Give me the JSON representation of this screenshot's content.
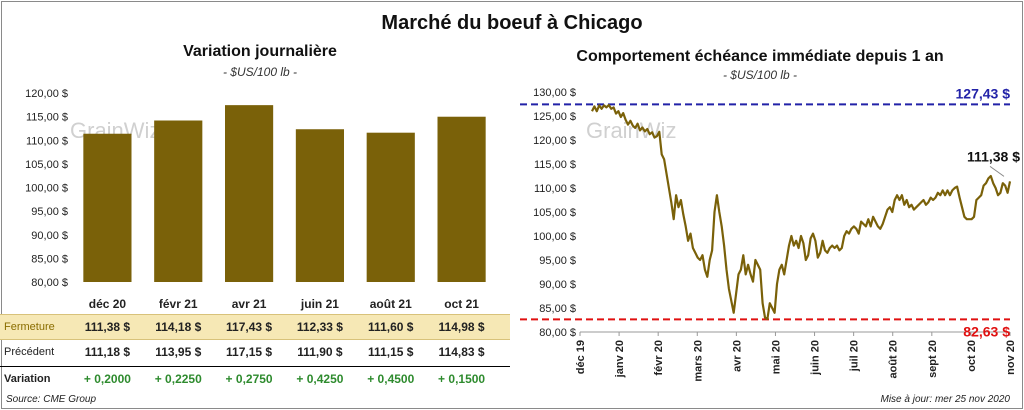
{
  "title": "Marché du boeuf à Chicago",
  "watermark": "GrainWiz",
  "footer": {
    "source": "Source: CME Group",
    "updated": "Mise à jour: mer 25 nov 2020"
  },
  "colors": {
    "bar": "#7a6109",
    "line": "#7a6109",
    "high": "#2222a8",
    "low": "#e01010",
    "fermeture_bg": "#f6e8b5",
    "positive": "#2e8b2e"
  },
  "chart_data": [
    {
      "type": "bar",
      "title": "Variation journalière",
      "subtitle": "- $US/100 lb -",
      "categories": [
        "déc 20",
        "févr 21",
        "avr 21",
        "juin 21",
        "août 21",
        "oct 21"
      ],
      "values": [
        111.38,
        114.18,
        117.43,
        112.33,
        111.6,
        114.98
      ],
      "ylim": [
        80,
        120
      ],
      "yticks": [
        "80,00 $",
        "85,00 $",
        "90,00 $",
        "95,00 $",
        "100,00 $",
        "105,00 $",
        "110,00 $",
        "115,00 $",
        "120,00 $"
      ],
      "table": {
        "rows": [
          {
            "label": "Fermeture",
            "values": [
              "111,38",
              "114,18",
              "117,43",
              "112,33",
              "111,60",
              "114,98"
            ]
          },
          {
            "label": "Précédent",
            "values": [
              "111,18",
              "113,95",
              "117,15",
              "111,90",
              "111,15",
              "114,83"
            ]
          },
          {
            "label": "Variation",
            "values": [
              "+ 0,2000",
              "+ 0,2250",
              "+ 0,2750",
              "+ 0,4250",
              "+ 0,4500",
              "+ 0,1500"
            ]
          }
        ],
        "currency": "$"
      }
    },
    {
      "type": "line",
      "title": "Comportement  échéance immédiate depuis 1 an",
      "subtitle": "- $US/100 lb -",
      "ylim": [
        80,
        130
      ],
      "yticks": [
        "80,00 $",
        "85,00 $",
        "90,00 $",
        "95,00 $",
        "100,00 $",
        "105,00 $",
        "110,00 $",
        "115,00 $",
        "120,00 $",
        "125,00 $",
        "130,00 $"
      ],
      "xticks": [
        "déc 19",
        "janv 20",
        "févr 20",
        "mars 20",
        "avr 20",
        "mai 20",
        "juin 20",
        "juil 20",
        "août 20",
        "sept 20",
        "oct 20",
        "nov 20"
      ],
      "high": {
        "value": 127.43,
        "label": "127,43 $"
      },
      "low": {
        "value": 82.63,
        "label": "82,63 $"
      },
      "last": {
        "value": 111.38,
        "label": "111,38 $"
      },
      "series": [
        {
          "values": [
            126.0,
            127.0,
            126.0,
            127.2,
            126.5,
            127.2,
            126.8,
            127.3,
            126.5,
            126.8,
            125.5,
            126.0,
            124.8,
            125.6,
            124.2,
            123.2,
            124.0,
            123.0,
            122.5,
            123.4,
            122.0,
            122.6,
            121.8,
            122.3,
            121.2,
            121.6,
            120.5,
            120.8,
            121.7,
            117.0,
            116.0,
            113.0,
            110.0,
            107.0,
            103.5,
            108.5,
            106.0,
            107.5,
            104.5,
            102.0,
            99.0,
            100.5,
            97.5,
            96.5,
            95.5,
            95.0,
            96.0,
            93.0,
            91.5,
            95.0,
            97.0,
            105.0,
            108.5,
            105.0,
            102.0,
            98.0,
            93.0,
            89.0,
            86.5,
            84.0,
            88.0,
            92.0,
            93.0,
            96.0,
            92.0,
            94.0,
            92.0,
            90.5,
            95.0,
            94.0,
            93.0,
            86.0,
            83.0,
            82.7,
            86.0,
            85.0,
            84.0,
            90.0,
            93.0,
            94.0,
            92.0,
            95.0,
            98.0,
            100.0,
            98.0,
            99.0,
            97.5,
            100.0,
            98.5,
            95.0,
            96.0,
            99.5,
            100.5,
            99.0,
            95.5,
            96.5,
            99.0,
            97.0,
            96.5,
            97.5,
            98.0,
            97.5,
            98.0,
            97.0,
            97.5,
            100.0,
            101.0,
            100.5,
            101.5,
            102.0,
            101.5,
            100.5,
            103.0,
            102.5,
            102.0,
            103.5,
            102.0,
            104.0,
            103.0,
            102.0,
            101.5,
            102.5,
            104.0,
            105.5,
            106.0,
            105.0,
            107.5,
            108.5,
            107.5,
            108.5,
            106.5,
            107.5,
            106.0,
            106.5,
            105.5,
            106.0,
            106.5,
            107.0,
            107.5,
            106.5,
            107.0,
            108.0,
            107.5,
            108.0,
            109.0,
            108.5,
            109.5,
            108.5,
            109.5,
            108.5,
            109.5,
            110.0,
            110.3,
            108.0,
            106.0,
            104.0,
            103.5,
            103.5,
            103.5,
            104.0,
            107.5,
            108.0,
            108.5,
            110.5,
            111.0,
            112.0,
            112.5,
            111.0,
            110.0,
            108.5,
            109.0,
            111.0,
            110.5,
            109.0,
            111.38
          ]
        }
      ]
    }
  ]
}
